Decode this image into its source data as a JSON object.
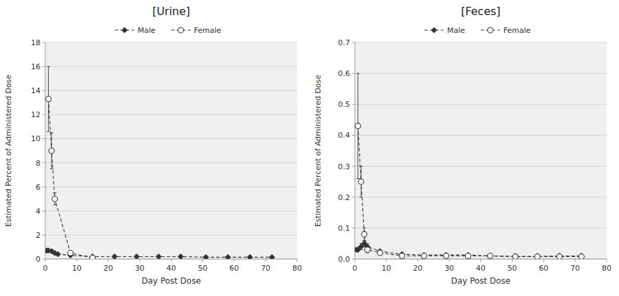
{
  "chart_data": [
    {
      "type": "line",
      "title": "[Urine]",
      "x_label": "Day Post Dose",
      "y_label": "Estimated Percent of Administered Dose",
      "xlim": [
        0,
        80
      ],
      "xticks": [
        0,
        10,
        20,
        30,
        40,
        50,
        60,
        70,
        80
      ],
      "ylim": [
        0,
        18
      ],
      "yticks": [
        0,
        2,
        4,
        6,
        8,
        10,
        12,
        14,
        16,
        18
      ],
      "grid": true,
      "legend": "top",
      "series": [
        {
          "name": "Male",
          "color": "#333333",
          "marker": "diamond",
          "line_style": "dashed",
          "x": [
            0.5,
            1,
            2,
            3,
            4,
            8,
            15,
            22,
            29,
            36,
            43,
            51,
            58,
            65,
            72
          ],
          "values": [
            0.7,
            0.7,
            0.65,
            0.5,
            0.4,
            0.3,
            0.2,
            0.2,
            0.2,
            0.2,
            0.2,
            0.15,
            0.15,
            0.15,
            0.15
          ],
          "errors": [
            0.15,
            0.1,
            0.1,
            0.1,
            0.1,
            0.05,
            0.05,
            0.05,
            0.05,
            0.05,
            0.05,
            0.05,
            0.05,
            0.05,
            0.05
          ]
        },
        {
          "name": "Female",
          "color": "#333333",
          "marker": "open-circle",
          "line_style": "dashed",
          "x": [
            1,
            2,
            3,
            8,
            15
          ],
          "values": [
            13.3,
            9.0,
            5.0,
            0.5,
            0.1
          ],
          "errors": [
            2.7,
            1.5,
            0.5,
            0.15,
            0.05
          ]
        }
      ]
    },
    {
      "type": "line",
      "title": "[Feces]",
      "x_label": "Day Post Dose",
      "y_label": "Estimated Percent of Administered Dose",
      "xlim": [
        0,
        80
      ],
      "xticks": [
        0,
        10,
        20,
        30,
        40,
        50,
        60,
        70,
        80
      ],
      "ylim": [
        0,
        0.7
      ],
      "yticks": [
        {
          "value": 0,
          "label": "0.0"
        },
        0.1,
        0.2,
        0.3,
        0.4,
        0.5,
        0.6,
        0.7
      ],
      "grid": true,
      "legend": "top",
      "series": [
        {
          "name": "Male",
          "color": "#333333",
          "marker": "diamond",
          "line_style": "dashed",
          "x": [
            0.5,
            1,
            2,
            3,
            4,
            8,
            15,
            22,
            29,
            36,
            43,
            51,
            58,
            65,
            72
          ],
          "values": [
            0.03,
            0.03,
            0.04,
            0.05,
            0.04,
            0.025,
            0.015,
            0.013,
            0.013,
            0.013,
            0.01,
            0.008,
            0.008,
            0.01,
            0.01
          ],
          "errors": [
            0.005,
            0.005,
            0.01,
            0.01,
            0.01,
            0.005,
            0.005,
            0.003,
            0.003,
            0.003,
            0.003,
            0.002,
            0.002,
            0.002,
            0.002
          ]
        },
        {
          "name": "Female",
          "color": "#333333",
          "marker": "open-circle",
          "line_style": "dashed",
          "x": [
            1,
            2,
            3,
            4,
            8,
            15,
            22,
            29,
            36,
            43,
            51,
            58,
            65,
            72
          ],
          "values": [
            0.43,
            0.25,
            0.08,
            0.03,
            0.02,
            0.01,
            0.01,
            0.01,
            0.01,
            0.01,
            0.008,
            0.008,
            0.008,
            0.008
          ],
          "errors": [
            0.17,
            0.05,
            0.02,
            0.01,
            0.005,
            0.003,
            0.003,
            0.003,
            0.003,
            0.003,
            0.002,
            0.002,
            0.002,
            0.002
          ]
        }
      ]
    }
  ]
}
